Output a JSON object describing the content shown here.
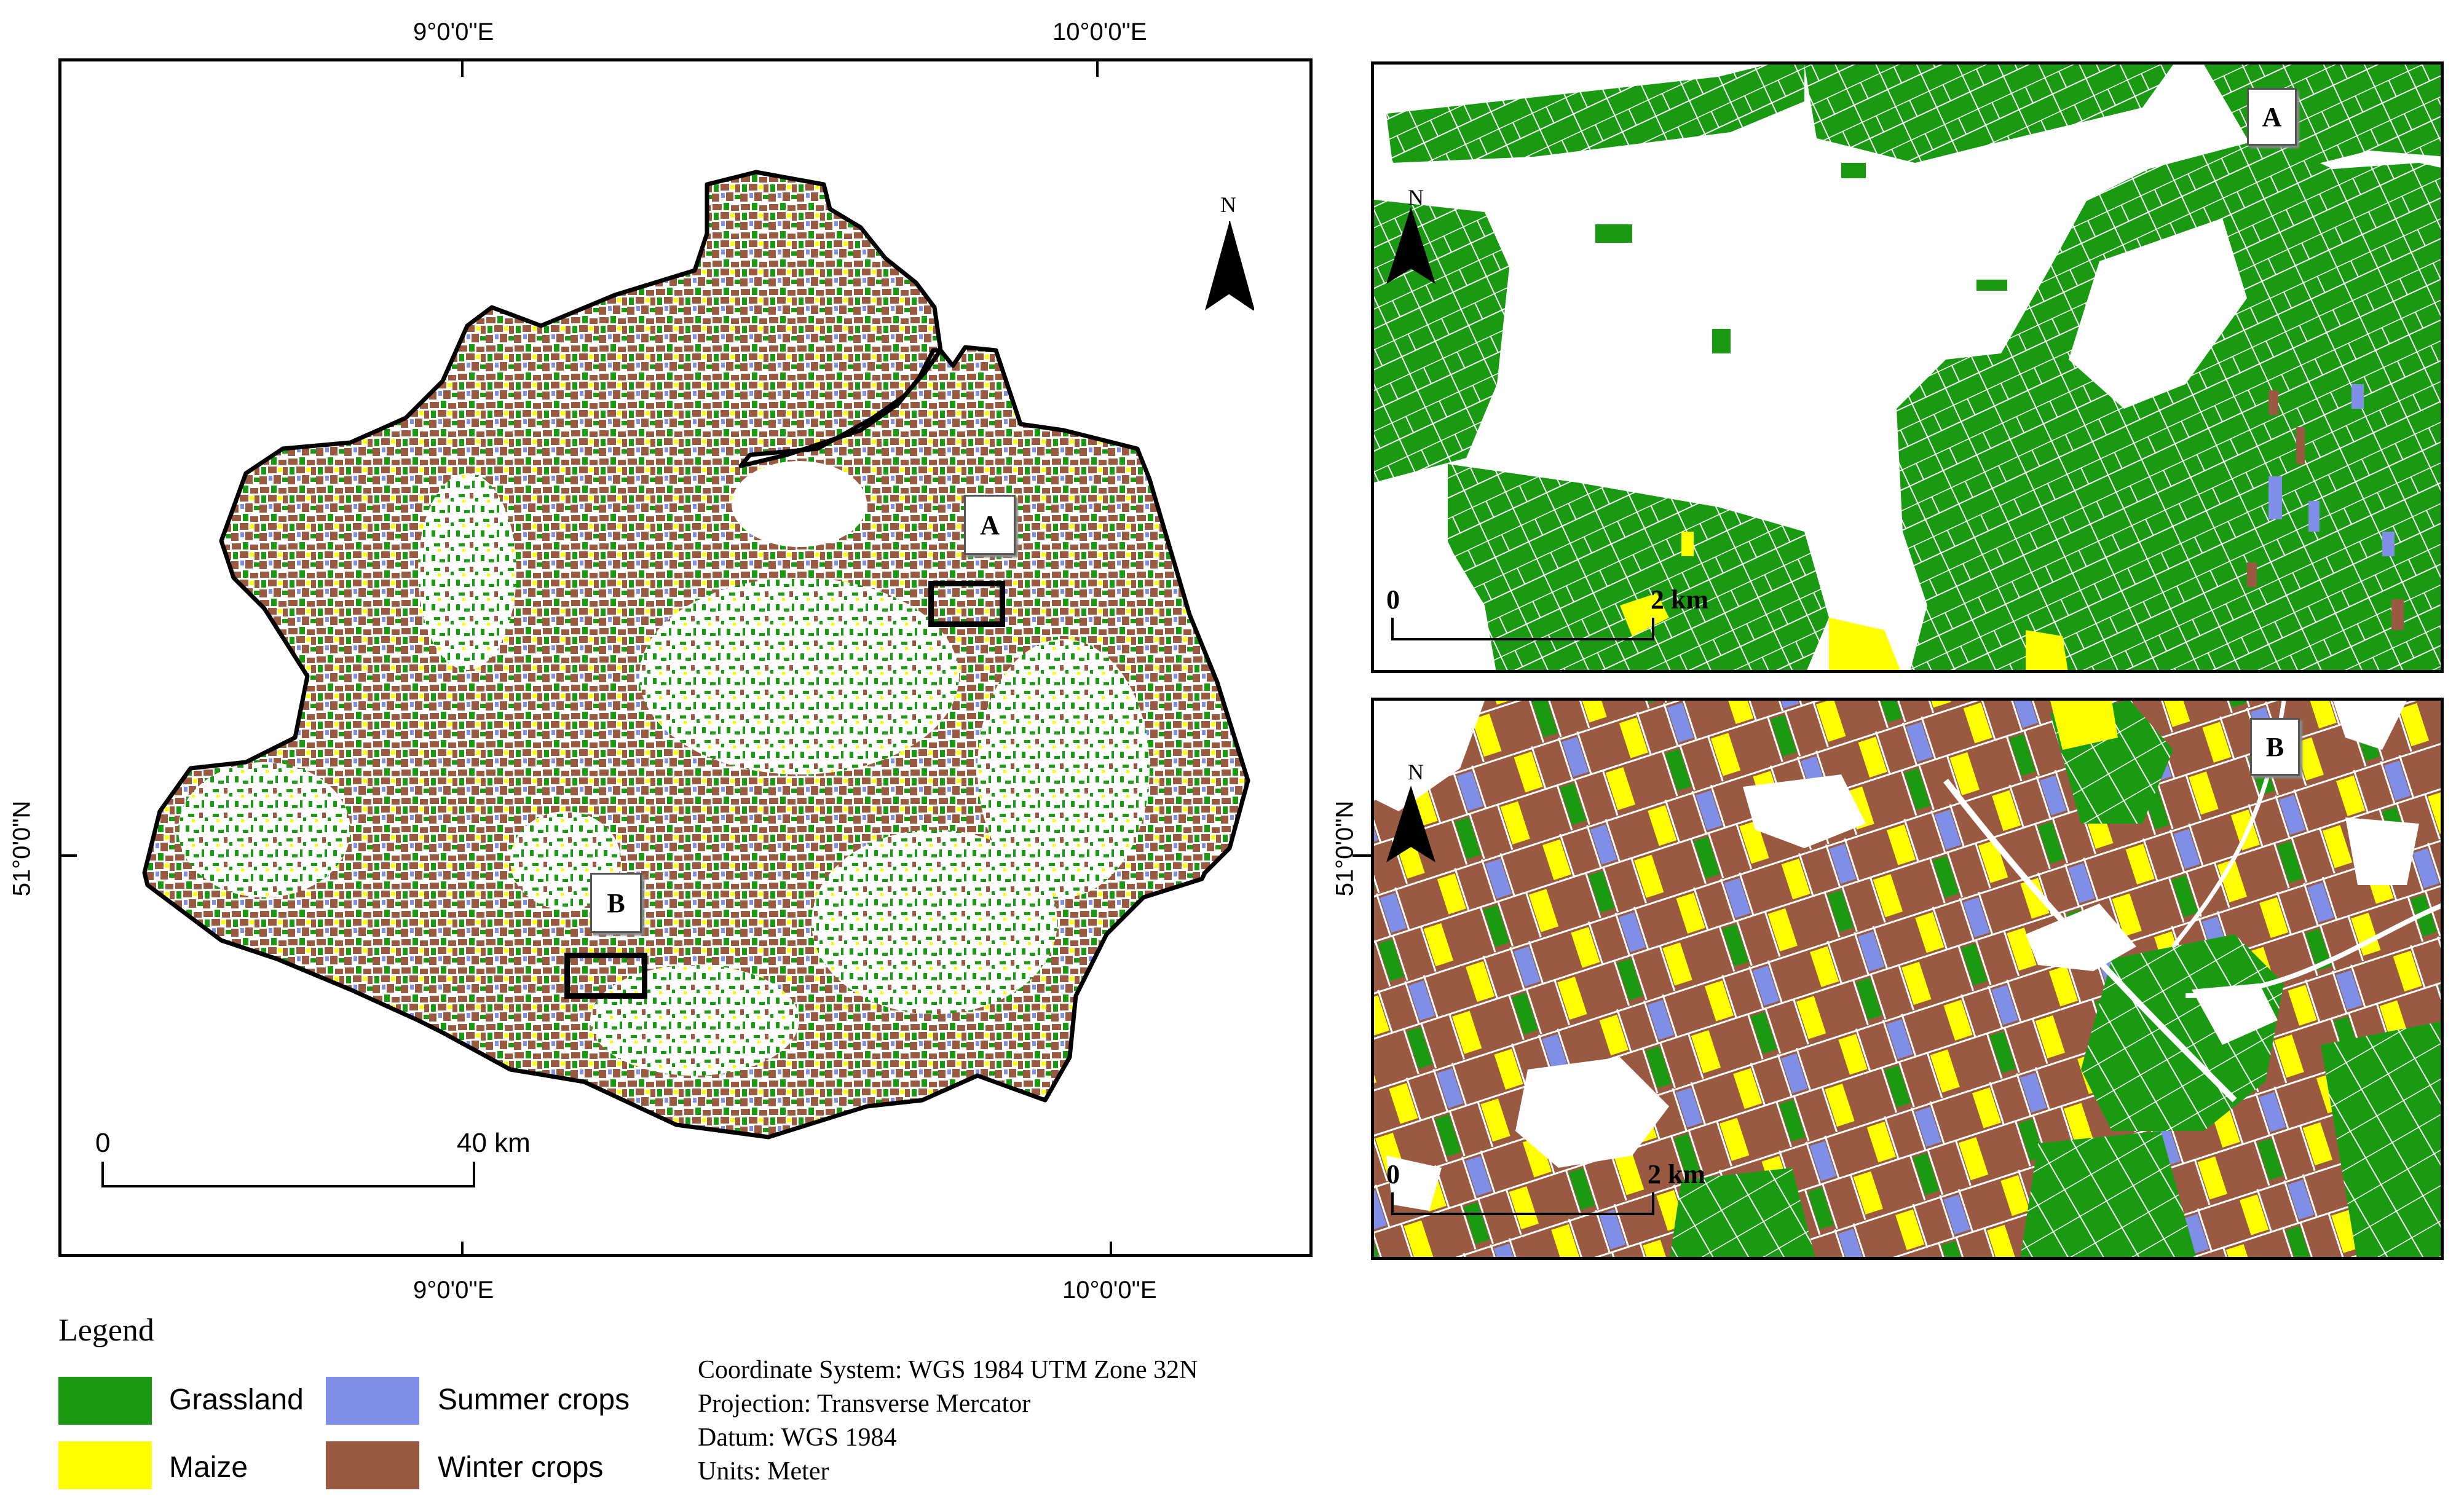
{
  "main_map": {
    "lon_labels": [
      "9°0'0\"E",
      "10°0'0\"E"
    ],
    "lat_label": "51°0'0\"N",
    "north_label": "N",
    "scale": {
      "start": "0",
      "end": "40 km"
    },
    "extent_labels": [
      "A",
      "B"
    ]
  },
  "inset_a": {
    "label": "A",
    "north_label": "N",
    "scale": {
      "start": "0",
      "end": "2 km"
    }
  },
  "inset_b": {
    "label": "B",
    "north_label": "N",
    "scale": {
      "start": "0",
      "end": "2 km"
    },
    "lat_label": "51°0'0\"N"
  },
  "legend": {
    "title": "Legend",
    "items": [
      {
        "label": "Grassland",
        "color": "#1a9a12"
      },
      {
        "label": "Maize",
        "color": "#ffff00"
      },
      {
        "label": "Summer crops",
        "color": "#7f8fe8"
      },
      {
        "label": "Winter crops",
        "color": "#9a5a42"
      }
    ]
  },
  "info": {
    "lines": [
      "Coordinate System: WGS 1984 UTM Zone 32N",
      "Projection: Transverse Mercator",
      "Datum: WGS 1984",
      "Units: Meter"
    ]
  }
}
